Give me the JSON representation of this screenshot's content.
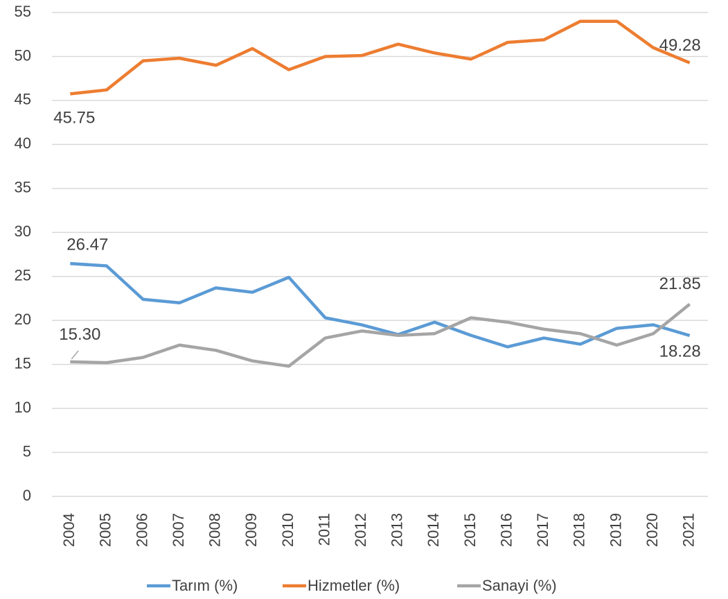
{
  "chart_data": {
    "type": "line",
    "categories": [
      "2004",
      "2005",
      "2006",
      "2007",
      "2008",
      "2009",
      "2010",
      "2011",
      "2012",
      "2013",
      "2014",
      "2015",
      "2016",
      "2017",
      "2018",
      "2019",
      "2020",
      "2021"
    ],
    "series": [
      {
        "name": "Tarım (%)",
        "color": "#5b9bd5",
        "values": [
          26.47,
          26.2,
          22.4,
          22.0,
          23.7,
          23.2,
          24.9,
          20.3,
          19.5,
          18.4,
          19.8,
          18.3,
          17.0,
          18.0,
          17.3,
          19.1,
          19.5,
          18.28
        ],
        "value_labels": [
          "26.47",
          null,
          null,
          null,
          null,
          null,
          null,
          null,
          null,
          null,
          null,
          null,
          null,
          null,
          null,
          null,
          null,
          "18.28"
        ]
      },
      {
        "name": "Hizmetler (%)",
        "color": "#ed7d31",
        "values": [
          45.75,
          46.2,
          49.5,
          49.8,
          49.0,
          50.9,
          48.5,
          50.0,
          50.1,
          51.4,
          50.4,
          49.7,
          51.6,
          51.9,
          54.0,
          54.0,
          51.0,
          49.28
        ],
        "value_labels": [
          "45.75",
          null,
          null,
          null,
          null,
          null,
          null,
          null,
          null,
          null,
          null,
          null,
          null,
          null,
          null,
          null,
          null,
          "49.28"
        ]
      },
      {
        "name": "Sanayi (%)",
        "color": "#a5a5a5",
        "values": [
          15.3,
          15.2,
          15.8,
          17.2,
          16.6,
          15.4,
          14.8,
          18.0,
          18.8,
          18.3,
          18.5,
          20.3,
          19.8,
          19.0,
          18.5,
          17.2,
          18.5,
          21.85
        ],
        "value_labels": [
          "15.30",
          null,
          null,
          null,
          null,
          null,
          null,
          null,
          null,
          null,
          null,
          null,
          null,
          null,
          null,
          null,
          null,
          "21.85"
        ]
      }
    ],
    "ylim": [
      0,
      55
    ],
    "yticks": [
      0,
      5,
      10,
      15,
      20,
      25,
      30,
      35,
      40,
      45,
      50,
      55
    ],
    "grid": true
  }
}
